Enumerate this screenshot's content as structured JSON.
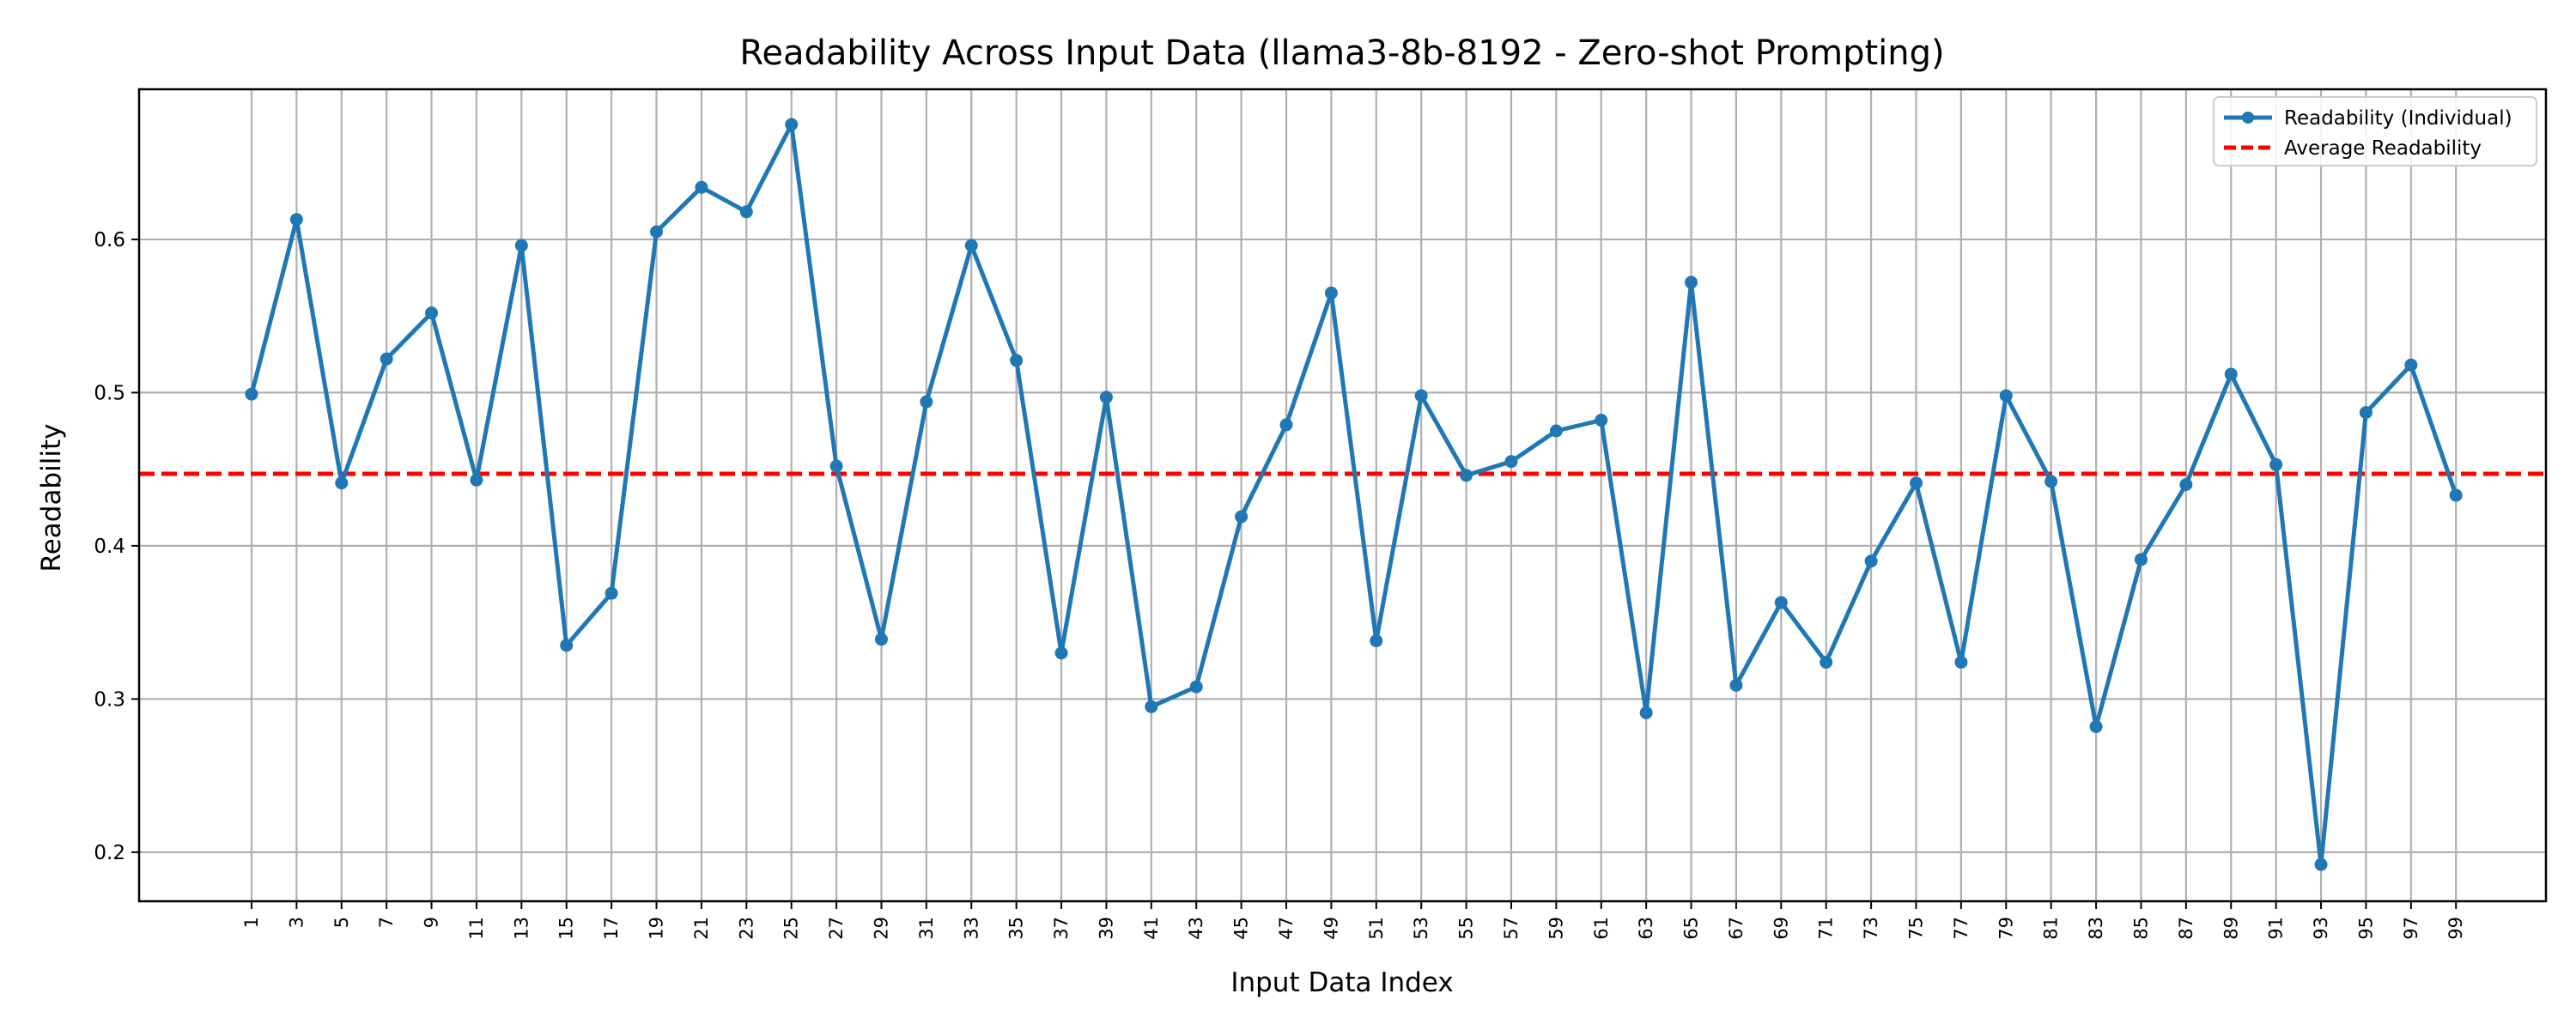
{
  "chart_data": {
    "type": "line",
    "title": "Readability Across Input Data (llama3-8b-8192 - Zero-shot Prompting)",
    "xlabel": "Input Data Index",
    "ylabel": "Readability",
    "x": [
      1,
      3,
      5,
      7,
      9,
      11,
      13,
      15,
      17,
      19,
      21,
      23,
      25,
      27,
      29,
      31,
      33,
      35,
      37,
      39,
      41,
      43,
      45,
      47,
      49,
      51,
      53,
      55,
      57,
      59,
      61,
      63,
      65,
      67,
      69,
      71,
      73,
      75,
      77,
      79,
      81,
      83,
      85,
      87,
      89,
      91,
      93,
      95,
      97,
      99
    ],
    "x_ticks": [
      "1",
      "3",
      "5",
      "7",
      "9",
      "11",
      "13",
      "15",
      "17",
      "19",
      "21",
      "23",
      "25",
      "27",
      "29",
      "31",
      "33",
      "35",
      "37",
      "39",
      "41",
      "43",
      "45",
      "47",
      "49",
      "51",
      "53",
      "55",
      "57",
      "59",
      "61",
      "63",
      "65",
      "67",
      "69",
      "71",
      "73",
      "75",
      "77",
      "79",
      "81",
      "83",
      "85",
      "87",
      "89",
      "91",
      "93",
      "95",
      "97",
      "99"
    ],
    "xlim": [
      -4,
      103
    ],
    "ylim": [
      0.168,
      0.698
    ],
    "y_ticks": [
      0.2,
      0.3,
      0.4,
      0.5,
      0.6
    ],
    "y_tick_labels": [
      "0.2",
      "0.3",
      "0.4",
      "0.5",
      "0.6"
    ],
    "grid": true,
    "legend_position": "top-right",
    "series": [
      {
        "name": "Readability (Individual)",
        "color": "#1f77b4",
        "style": "solid-with-markers",
        "values": [
          0.499,
          0.613,
          0.441,
          0.522,
          0.552,
          0.443,
          0.596,
          0.335,
          0.369,
          0.605,
          0.634,
          0.618,
          0.675,
          0.452,
          0.339,
          0.494,
          0.596,
          0.521,
          0.33,
          0.497,
          0.295,
          0.308,
          0.419,
          0.479,
          0.565,
          0.338,
          0.498,
          0.446,
          0.455,
          0.475,
          0.482,
          0.291,
          0.572,
          0.309,
          0.363,
          0.324,
          0.39,
          0.441,
          0.324,
          0.498,
          0.442,
          0.282,
          0.391,
          0.44,
          0.512,
          0.453,
          0.192,
          0.487,
          0.518,
          0.433
        ]
      }
    ],
    "reference_lines": [
      {
        "name": "Average Readability",
        "y": 0.447,
        "color": "#ff0000",
        "style": "dashed"
      }
    ]
  }
}
